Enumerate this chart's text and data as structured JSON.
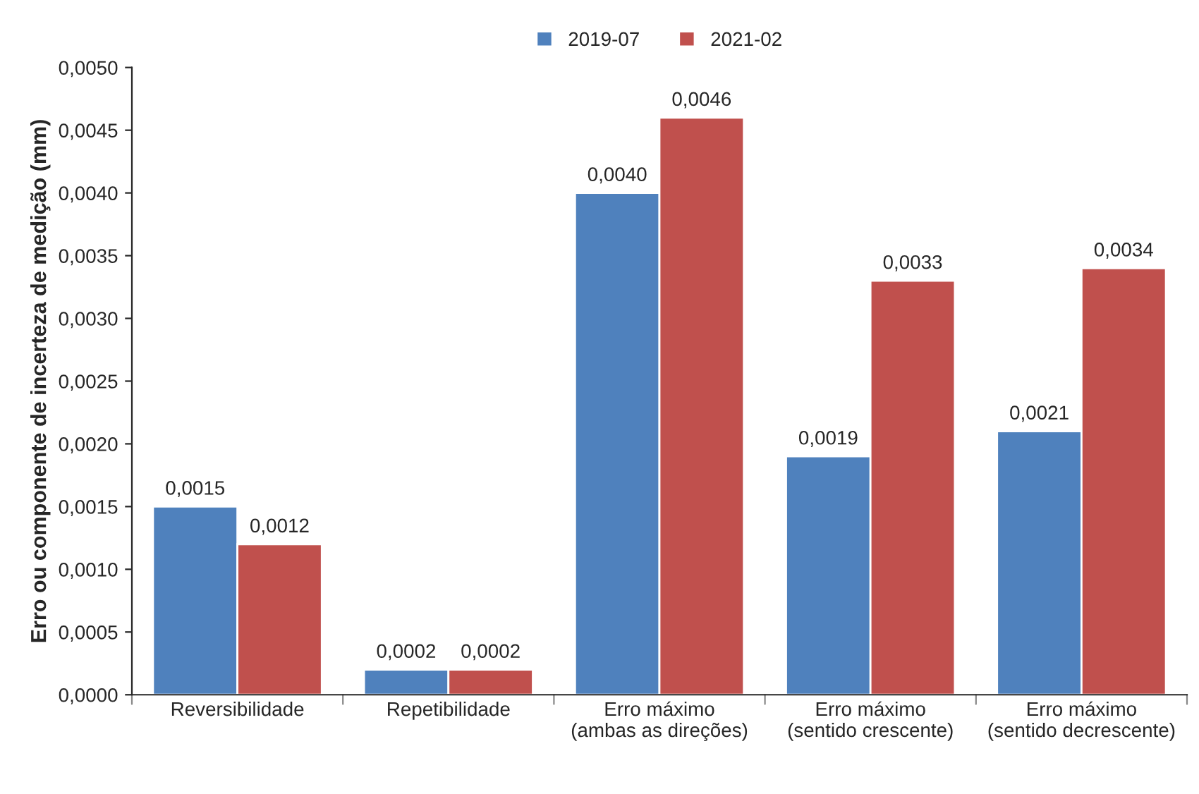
{
  "chart_data": {
    "type": "bar",
    "ylabel": "Erro ou componente de incerteza de medição (mm)",
    "categories": [
      "Reversibilidade",
      "Repetibilidade",
      "Erro máximo\n(ambas as direções)",
      "Erro máximo\n(sentido crescente)",
      "Erro máximo\n(sentido decrescente)"
    ],
    "series": [
      {
        "name": "2019-07",
        "color": "#4f81bd",
        "values": [
          0.0015,
          0.0002,
          0.004,
          0.0019,
          0.0021
        ],
        "value_labels": [
          "0,0015",
          "0,0002",
          "0,0040",
          "0,0019",
          "0,0021"
        ]
      },
      {
        "name": "2021-02",
        "color": "#c0504d",
        "values": [
          0.0012,
          0.0002,
          0.0046,
          0.0033,
          0.0034
        ],
        "value_labels": [
          "0,0012",
          "0,0002",
          "0,0046",
          "0,0033",
          "0,0034"
        ]
      }
    ],
    "ylim": [
      0,
      0.005
    ],
    "yticks": [
      {
        "value": 0,
        "label": "0,0000"
      },
      {
        "value": 0.0005,
        "label": "0,0005"
      },
      {
        "value": 0.001,
        "label": "0,0010"
      },
      {
        "value": 0.0015,
        "label": "0,0015"
      },
      {
        "value": 0.002,
        "label": "0,0020"
      },
      {
        "value": 0.0025,
        "label": "0,0025"
      },
      {
        "value": 0.003,
        "label": "0,0030"
      },
      {
        "value": 0.0035,
        "label": "0,0035"
      },
      {
        "value": 0.004,
        "label": "0,0040"
      },
      {
        "value": 0.0045,
        "label": "0,0045"
      },
      {
        "value": 0.005,
        "label": "0,0050"
      }
    ],
    "grid": false,
    "legend": "top"
  }
}
